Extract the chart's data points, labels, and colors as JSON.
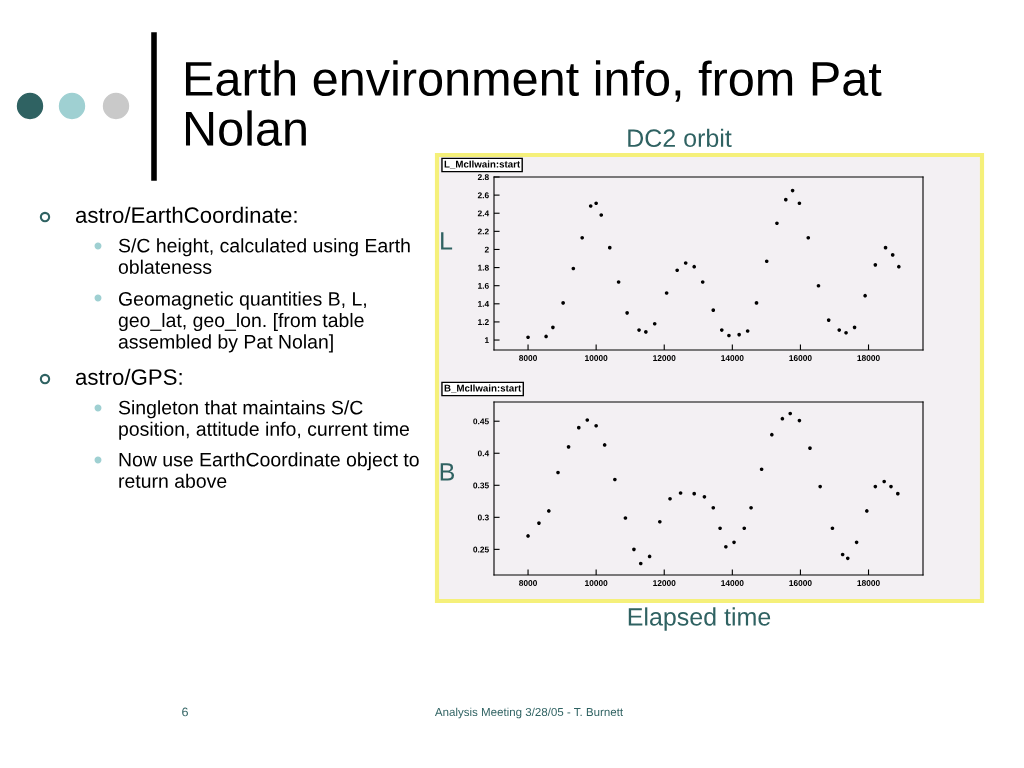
{
  "chart_data": [
    {
      "type": "scatter",
      "title": "L_McIlwain:start",
      "ylabel": "L",
      "marker": "circle",
      "annotations": [
        "Earth environment info, from Pat\nNolan",
        "astro/EarthCoordinate:",
        "S/C height, calculated using Earth\noblateness",
        "Geomagnetic quantities B, L,\ngeo_lat, geo_lon. [from table\nassembled by Pat Nolan]",
        "astro/GPS:",
        "Singleton that maintains S/C\nposition, attitude info, current time",
        "Now use EarthCoordinate object to\nreturn above",
        "DC2 orbit",
        "6",
        "Analysis Meeting 3/28/05 - T. Burnett"
      ],
      "xlim": [
        7000,
        19600
      ],
      "xticks": [
        8000,
        10000,
        12000,
        14000,
        16000,
        18000
      ],
      "ylim": [
        0.89,
        2.8
      ],
      "yticks": [
        1,
        1.2,
        1.4,
        1.6,
        1.8,
        2,
        2.2,
        2.4,
        2.6,
        2.8
      ],
      "series": [
        {
          "color": "#000000",
          "x": [
            8000,
            8530,
            8730,
            9030,
            9330,
            9590,
            9840,
            10000,
            10150,
            10400,
            10660,
            10910,
            11260,
            11460,
            11720,
            12070,
            12380,
            12630,
            12880,
            13130,
            13440,
            13690,
            13900,
            14200,
            14450,
            14710,
            15010,
            15310,
            15570,
            15770,
            15970,
            16230,
            16530,
            16830,
            17140,
            17340,
            17590,
            17900,
            18200,
            18500,
            18710,
            18890
          ],
          "values": [
            1.03,
            1.04,
            1.14,
            1.41,
            1.79,
            2.13,
            2.48,
            2.51,
            2.38,
            2.02,
            1.64,
            1.3,
            1.11,
            1.09,
            1.18,
            1.52,
            1.77,
            1.85,
            1.81,
            1.64,
            1.33,
            1.11,
            1.05,
            1.06,
            1.1,
            1.41,
            1.87,
            2.29,
            2.55,
            2.65,
            2.51,
            2.13,
            1.6,
            1.22,
            1.11,
            1.08,
            1.14,
            1.49,
            1.83,
            2.02,
            1.94,
            1.81
          ]
        }
      ]
    },
    {
      "type": "scatter",
      "title": "B_McIlwain:start",
      "ylabel": "B",
      "xlabel": "Elapsed time",
      "marker": "circle",
      "xlim": [
        7000,
        19600
      ],
      "xticks": [
        8000,
        10000,
        12000,
        14000,
        16000,
        18000
      ],
      "ylim": [
        0.21,
        0.48
      ],
      "yticks": [
        0.25,
        0.3,
        0.35,
        0.4,
        0.45
      ],
      "series": [
        {
          "color": "#000000",
          "x": [
            8000,
            8320,
            8610,
            8880,
            9190,
            9490,
            9740,
            10000,
            10250,
            10550,
            10860,
            11110,
            11310,
            11570,
            11870,
            12170,
            12480,
            12880,
            13180,
            13440,
            13640,
            13810,
            14050,
            14350,
            14550,
            14860,
            15160,
            15470,
            15700,
            15970,
            16280,
            16580,
            16940,
            17240,
            17390,
            17650,
            17950,
            18200,
            18460,
            18660,
            18860
          ],
          "values": [
            0.271,
            0.291,
            0.31,
            0.37,
            0.41,
            0.44,
            0.452,
            0.443,
            0.413,
            0.359,
            0.299,
            0.25,
            0.228,
            0.239,
            0.293,
            0.329,
            0.338,
            0.337,
            0.332,
            0.315,
            0.283,
            0.254,
            0.261,
            0.283,
            0.315,
            0.375,
            0.429,
            0.454,
            0.462,
            0.451,
            0.408,
            0.348,
            0.283,
            0.242,
            0.236,
            0.261,
            0.31,
            0.348,
            0.356,
            0.348,
            0.337
          ]
        }
      ]
    }
  ]
}
